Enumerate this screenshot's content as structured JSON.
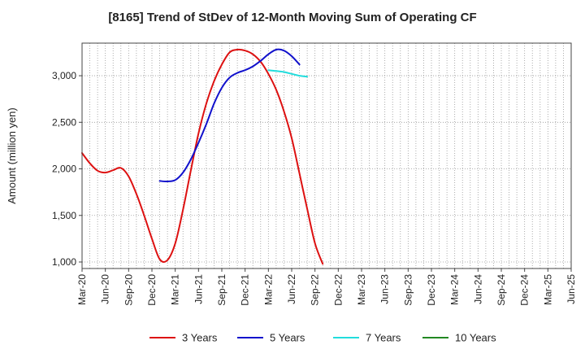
{
  "chart_data": {
    "type": "line",
    "title": "[8165]  Trend of StDev of 12-Month Moving Sum of Operating CF",
    "xlabel": "",
    "ylabel": "Amount (million yen)",
    "ylim": [
      930,
      3350
    ],
    "yticks": [
      1000,
      1500,
      2000,
      2500,
      3000
    ],
    "ytick_labels": [
      "1,000",
      "1,500",
      "2,000",
      "2,500",
      "3,000"
    ],
    "x_tick_labels": [
      "Mar-20",
      "Jun-20",
      "Sep-20",
      "Dec-20",
      "Mar-21",
      "Jun-21",
      "Sep-21",
      "Dec-21",
      "Mar-22",
      "Jun-22",
      "Sep-22",
      "Dec-22",
      "Mar-23",
      "Jun-23",
      "Sep-23",
      "Dec-23",
      "Mar-24",
      "Jun-24",
      "Sep-24",
      "Dec-24",
      "Mar-25",
      "Jun-25"
    ],
    "grid": true,
    "legend_position": "bottom",
    "series": [
      {
        "name": "3 Years",
        "color": "#dd1111",
        "points": [
          [
            0,
            2170
          ],
          [
            1,
            2060
          ],
          [
            2,
            1980
          ],
          [
            3,
            1960
          ],
          [
            4,
            1985
          ],
          [
            5,
            2010
          ],
          [
            6,
            1920
          ],
          [
            7,
            1730
          ],
          [
            8,
            1500
          ],
          [
            9,
            1250
          ],
          [
            10,
            1030
          ],
          [
            11,
            1020
          ],
          [
            12,
            1200
          ],
          [
            13,
            1560
          ],
          [
            14,
            1980
          ],
          [
            15,
            2380
          ],
          [
            16,
            2700
          ],
          [
            17,
            2940
          ],
          [
            18,
            3120
          ],
          [
            19,
            3250
          ],
          [
            20,
            3280
          ],
          [
            21,
            3270
          ],
          [
            22,
            3230
          ],
          [
            23,
            3150
          ],
          [
            24,
            3020
          ],
          [
            25,
            2850
          ],
          [
            26,
            2620
          ],
          [
            27,
            2330
          ],
          [
            28,
            1950
          ],
          [
            29,
            1570
          ],
          [
            30,
            1200
          ],
          [
            31,
            980
          ]
        ]
      },
      {
        "name": "5 Years",
        "color": "#1111cc",
        "points": [
          [
            10,
            1870
          ],
          [
            11,
            1865
          ],
          [
            12,
            1880
          ],
          [
            13,
            1960
          ],
          [
            14,
            2100
          ],
          [
            15,
            2280
          ],
          [
            16,
            2480
          ],
          [
            17,
            2700
          ],
          [
            18,
            2870
          ],
          [
            19,
            2980
          ],
          [
            20,
            3030
          ],
          [
            21,
            3060
          ],
          [
            22,
            3100
          ],
          [
            23,
            3160
          ],
          [
            24,
            3230
          ],
          [
            25,
            3280
          ],
          [
            26,
            3270
          ],
          [
            27,
            3210
          ],
          [
            28,
            3120
          ]
        ]
      },
      {
        "name": "7 Years",
        "color": "#22dddd",
        "points": [
          [
            24,
            3060
          ],
          [
            25,
            3050
          ],
          [
            26,
            3040
          ],
          [
            27,
            3020
          ],
          [
            28,
            3000
          ],
          [
            29,
            2990
          ]
        ]
      },
      {
        "name": "10 Years",
        "color": "#228822",
        "points": []
      }
    ]
  }
}
